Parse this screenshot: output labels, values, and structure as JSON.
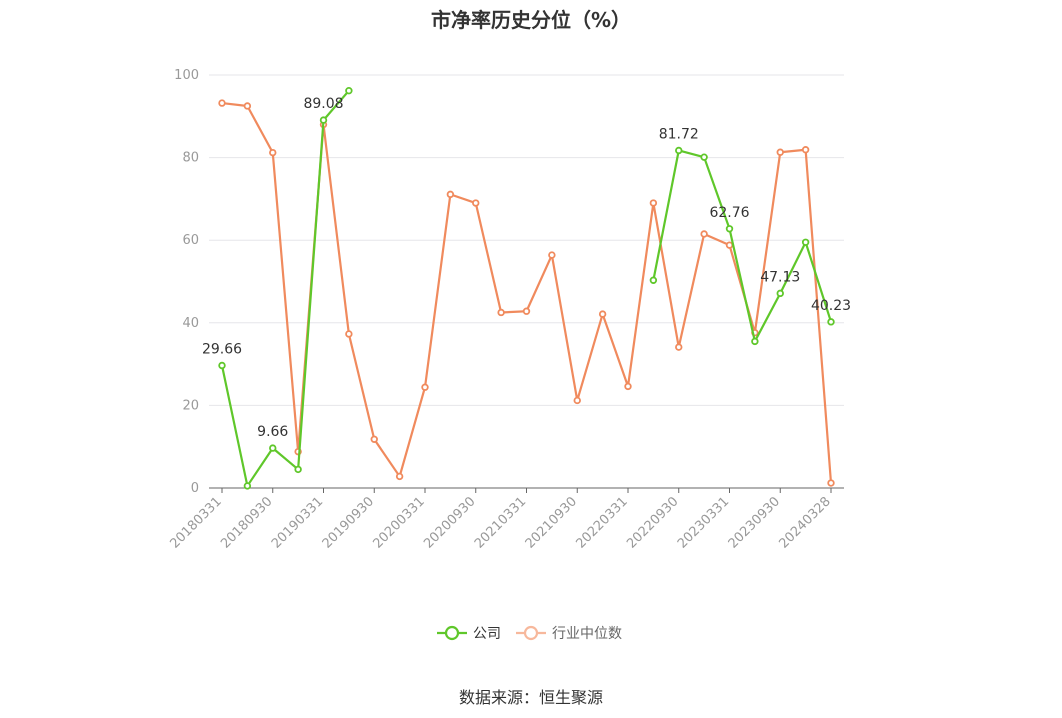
{
  "title": "市净率历史分位（%）",
  "source": "数据来源：恒生聚源",
  "chart_data": {
    "type": "line",
    "title": "市净率历史分位（%）",
    "ylim": [
      0,
      100
    ],
    "yticks": [
      0,
      20,
      40,
      60,
      80,
      100
    ],
    "grid": true,
    "legend_position": "bottom",
    "x": [
      "20180331",
      "20180630",
      "20180930",
      "20181231",
      "20190331",
      "20190630",
      "20190930",
      "20191231",
      "20200331",
      "20200630",
      "20200930",
      "20201231",
      "20210331",
      "20210630",
      "20210930",
      "20211231",
      "20220331",
      "20220630",
      "20220930",
      "20221231",
      "20230331",
      "20230630",
      "20230930",
      "20231231",
      "20240328"
    ],
    "xtick_labels": [
      "20180331",
      "20180930",
      "20190331",
      "20190930",
      "20200331",
      "20200930",
      "20210331",
      "20210930",
      "20220331",
      "20220930",
      "20230331",
      "20230930",
      "20240328"
    ],
    "series": [
      {
        "name": "公司",
        "color": "#5fc72a",
        "values": [
          29.66,
          0.5,
          9.66,
          4.5,
          89.08,
          96.2,
          null,
          null,
          null,
          null,
          null,
          null,
          null,
          null,
          null,
          null,
          null,
          50.3,
          81.72,
          80.1,
          62.76,
          35.5,
          47.13,
          59.5,
          40.23
        ],
        "labels": [
          {
            "index": 0,
            "text": "29.66"
          },
          {
            "index": 2,
            "text": "9.66"
          },
          {
            "index": 4,
            "text": "89.08"
          },
          {
            "index": 18,
            "text": "81.72"
          },
          {
            "index": 20,
            "text": "62.76"
          },
          {
            "index": 22,
            "text": "47.13"
          },
          {
            "index": 24,
            "text": "40.23"
          }
        ]
      },
      {
        "name": "行业中位数",
        "color": "#f08a5d",
        "values": [
          93.2,
          92.5,
          81.2,
          8.8,
          88.0,
          37.3,
          11.8,
          2.8,
          24.4,
          71.1,
          69.0,
          42.5,
          42.8,
          56.4,
          21.2,
          42.1,
          24.6,
          69.0,
          34.1,
          61.5,
          58.8,
          37.6,
          81.3,
          81.9,
          1.2
        ]
      }
    ]
  }
}
